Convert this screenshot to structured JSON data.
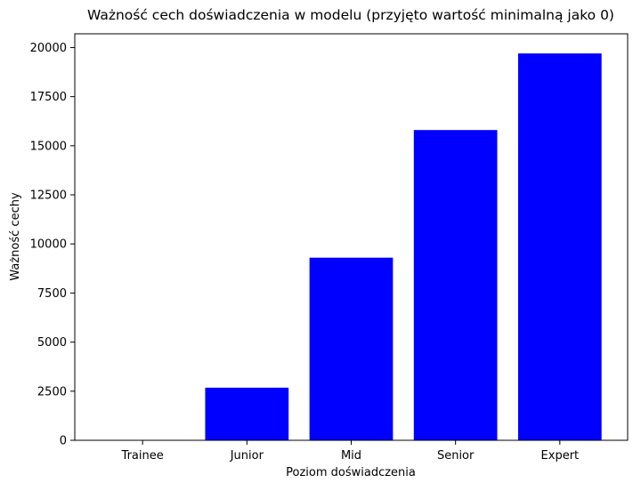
{
  "chart_data": {
    "type": "bar",
    "title": "Ważność cech doświadczenia w modelu (przyjęto wartość minimalną jako 0)",
    "xlabel": "Poziom doświadczenia",
    "ylabel": "Ważność cechy",
    "categories": [
      "Trainee",
      "Junior",
      "Mid",
      "Senior",
      "Expert"
    ],
    "values": [
      0,
      2680,
      9300,
      15800,
      19700
    ],
    "ylim": [
      0,
      20700
    ],
    "yticks": [
      0,
      2500,
      5000,
      7500,
      10000,
      12500,
      15000,
      17500,
      20000
    ],
    "bar_color": "#0000ff",
    "grid": false,
    "legend": "none"
  }
}
